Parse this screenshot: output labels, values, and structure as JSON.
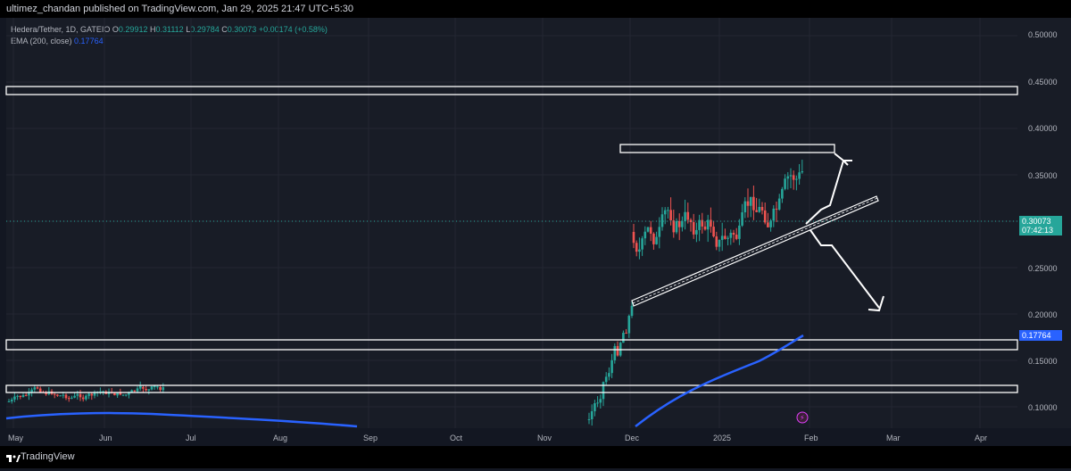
{
  "header": {
    "text": "ultimez_chandan published on TradingView.com, Jan 29, 2025 21:47 UTC+5:30"
  },
  "legend": {
    "symbol": "Hedera/Tether, 1D, GATEIO",
    "o_label": "O",
    "o_value": "0.29912",
    "h_label": "H",
    "h_value": "0.31112",
    "l_label": "L",
    "l_value": "0.29784",
    "c_label": "C",
    "c_value": "0.30073",
    "change": "+0.00174 (+0.58%)",
    "ema_label": "EMA (200, close)",
    "ema_value": "0.17764"
  },
  "price_axis": {
    "labels": [
      "0.50000",
      "0.45000",
      "0.40000",
      "0.35000",
      "0.25000",
      "0.20000",
      "0.15000",
      "0.10000"
    ],
    "current_price": "0.30073",
    "countdown": "07:42:13",
    "ema_tag": "0.17764"
  },
  "time_axis": {
    "labels": [
      "May",
      "Jun",
      "Jul",
      "Aug",
      "Sep",
      "Oct",
      "Nov",
      "Dec",
      "2025",
      "Feb",
      "Mar",
      "Apr"
    ]
  },
  "footer": {
    "brand": "TradingView"
  },
  "colors": {
    "bg": "#131722",
    "up": "#26a69a",
    "down": "#ef5350",
    "ema": "#2962ff",
    "zone": "#ffffff"
  },
  "chart_data": {
    "type": "candlestick",
    "y_axis_range": [
      0.08,
      0.52
    ],
    "ema_200": [
      {
        "x": "May",
        "y": 0.088
      },
      {
        "x": "Jun",
        "y": 0.094
      },
      {
        "x": "Jul",
        "y": 0.09
      },
      {
        "x": "Aug",
        "y": 0.086
      },
      {
        "x": "Sep",
        "y": 0.08
      },
      {
        "x": "Dec",
        "y": 0.082
      },
      {
        "x": "2025",
        "y": 0.14
      },
      {
        "x": "Feb",
        "y": 0.18
      }
    ],
    "zones": [
      {
        "from": 0.437,
        "to": 0.446
      },
      {
        "from": 0.376,
        "to": 0.385
      },
      {
        "from": 0.163,
        "to": 0.175
      },
      {
        "from": 0.118,
        "to": 0.125
      }
    ],
    "trendline": {
      "start": {
        "x": "Dec",
        "y": 0.21
      },
      "end": {
        "x": "Feb",
        "y": 0.32
      }
    },
    "projections": [
      "up",
      "down"
    ]
  }
}
